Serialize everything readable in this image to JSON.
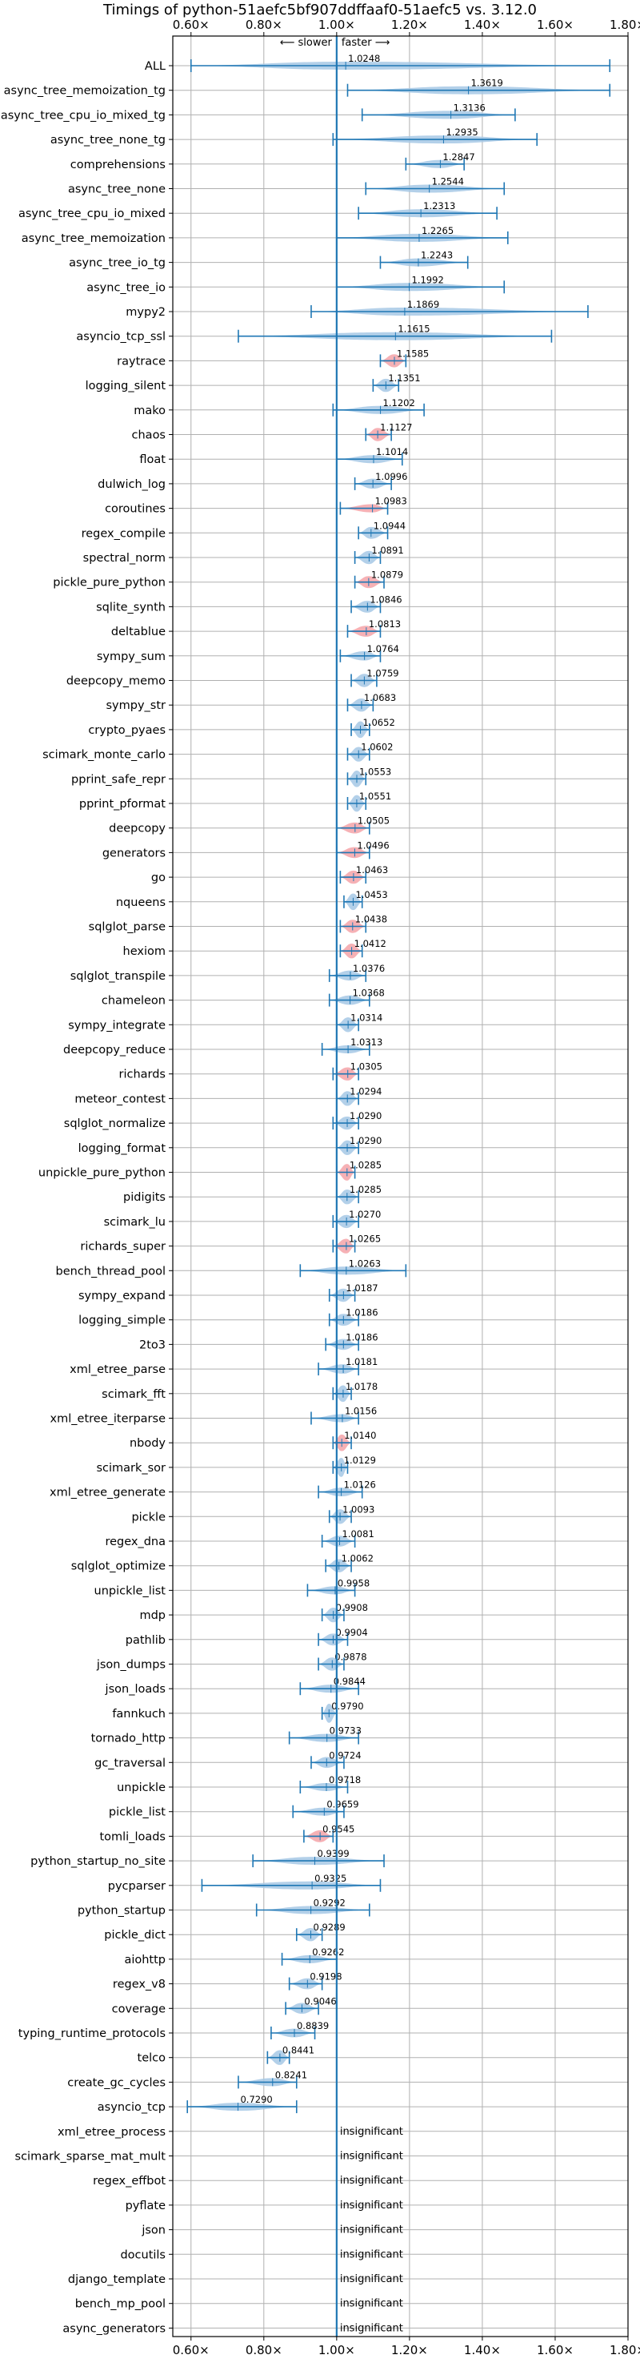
{
  "title": "Timings of python-51aefc5bf907ddffaaf0-51aefc5 vs. 3.12.0",
  "direction_labels": {
    "slower": "⟵ slower",
    "sep": "|",
    "faster": "faster ⟶"
  },
  "insignificant_label": "insignificant",
  "colors": {
    "violin": "#a6c8e5",
    "violin_slow": "#f4a3a8",
    "whisker": "#1f77b4",
    "axis": "#000000",
    "grid": "#b0b0b0"
  },
  "chart_data": {
    "type": "violin",
    "title": "Timings of python-51aefc5bf907ddffaaf0-51aefc5 vs. 3.12.0",
    "xlabel": "",
    "xlim": [
      0.55,
      1.8
    ],
    "xticks": [
      0.6,
      0.8,
      1.0,
      1.2,
      1.4,
      1.6,
      1.8
    ],
    "xtick_labels": [
      "0.60×",
      "0.80×",
      "1.00×",
      "1.20×",
      "1.40×",
      "1.60×",
      "1.80×"
    ],
    "reference_line": 1.0,
    "grid": true,
    "benchmarks": [
      {
        "name": "ALL",
        "mean": 1.0248,
        "low": 0.6,
        "high": 1.75,
        "slower": false
      },
      {
        "name": "async_tree_memoization_tg",
        "mean": 1.3619,
        "low": 1.03,
        "high": 1.75,
        "slower": false
      },
      {
        "name": "async_tree_cpu_io_mixed_tg",
        "mean": 1.3136,
        "low": 1.07,
        "high": 1.49,
        "slower": false
      },
      {
        "name": "async_tree_none_tg",
        "mean": 1.2935,
        "low": 0.99,
        "high": 1.55,
        "slower": false
      },
      {
        "name": "comprehensions",
        "mean": 1.2847,
        "low": 1.19,
        "high": 1.35,
        "slower": false
      },
      {
        "name": "async_tree_none",
        "mean": 1.2544,
        "low": 1.08,
        "high": 1.46,
        "slower": false
      },
      {
        "name": "async_tree_cpu_io_mixed",
        "mean": 1.2313,
        "low": 1.06,
        "high": 1.44,
        "slower": false
      },
      {
        "name": "async_tree_memoization",
        "mean": 1.2265,
        "low": 1.0,
        "high": 1.47,
        "slower": false
      },
      {
        "name": "async_tree_io_tg",
        "mean": 1.2243,
        "low": 1.12,
        "high": 1.36,
        "slower": false
      },
      {
        "name": "async_tree_io",
        "mean": 1.1992,
        "low": 1.0,
        "high": 1.46,
        "slower": false
      },
      {
        "name": "mypy2",
        "mean": 1.1869,
        "low": 0.93,
        "high": 1.69,
        "slower": false
      },
      {
        "name": "asyncio_tcp_ssl",
        "mean": 1.1615,
        "low": 0.73,
        "high": 1.59,
        "slower": false
      },
      {
        "name": "raytrace",
        "mean": 1.1585,
        "low": 1.12,
        "high": 1.19,
        "slower": true
      },
      {
        "name": "logging_silent",
        "mean": 1.1351,
        "low": 1.1,
        "high": 1.17,
        "slower": false
      },
      {
        "name": "mako",
        "mean": 1.1202,
        "low": 0.99,
        "high": 1.24,
        "slower": false
      },
      {
        "name": "chaos",
        "mean": 1.1127,
        "low": 1.08,
        "high": 1.15,
        "slower": true
      },
      {
        "name": "float",
        "mean": 1.1014,
        "low": 1.0,
        "high": 1.18,
        "slower": false
      },
      {
        "name": "dulwich_log",
        "mean": 1.0996,
        "low": 1.05,
        "high": 1.15,
        "slower": false
      },
      {
        "name": "coroutines",
        "mean": 1.0983,
        "low": 1.01,
        "high": 1.14,
        "slower": true
      },
      {
        "name": "regex_compile",
        "mean": 1.0944,
        "low": 1.06,
        "high": 1.14,
        "slower": false
      },
      {
        "name": "spectral_norm",
        "mean": 1.0891,
        "low": 1.05,
        "high": 1.12,
        "slower": false
      },
      {
        "name": "pickle_pure_python",
        "mean": 1.0879,
        "low": 1.05,
        "high": 1.13,
        "slower": true
      },
      {
        "name": "sqlite_synth",
        "mean": 1.0846,
        "low": 1.04,
        "high": 1.12,
        "slower": false
      },
      {
        "name": "deltablue",
        "mean": 1.0813,
        "low": 1.03,
        "high": 1.12,
        "slower": true
      },
      {
        "name": "sympy_sum",
        "mean": 1.0764,
        "low": 1.01,
        "high": 1.12,
        "slower": false
      },
      {
        "name": "deepcopy_memo",
        "mean": 1.0759,
        "low": 1.04,
        "high": 1.11,
        "slower": false
      },
      {
        "name": "sympy_str",
        "mean": 1.0683,
        "low": 1.03,
        "high": 1.1,
        "slower": false
      },
      {
        "name": "crypto_pyaes",
        "mean": 1.0652,
        "low": 1.04,
        "high": 1.09,
        "slower": false
      },
      {
        "name": "scimark_monte_carlo",
        "mean": 1.0602,
        "low": 1.03,
        "high": 1.09,
        "slower": false
      },
      {
        "name": "pprint_safe_repr",
        "mean": 1.0553,
        "low": 1.03,
        "high": 1.08,
        "slower": false
      },
      {
        "name": "pprint_pformat",
        "mean": 1.0551,
        "low": 1.03,
        "high": 1.08,
        "slower": false
      },
      {
        "name": "deepcopy",
        "mean": 1.0505,
        "low": 1.0,
        "high": 1.09,
        "slower": true
      },
      {
        "name": "generators",
        "mean": 1.0496,
        "low": 1.0,
        "high": 1.09,
        "slower": true
      },
      {
        "name": "go",
        "mean": 1.0463,
        "low": 1.01,
        "high": 1.08,
        "slower": true
      },
      {
        "name": "nqueens",
        "mean": 1.0453,
        "low": 1.02,
        "high": 1.07,
        "slower": false
      },
      {
        "name": "sqlglot_parse",
        "mean": 1.0438,
        "low": 1.01,
        "high": 1.08,
        "slower": true
      },
      {
        "name": "hexiom",
        "mean": 1.0412,
        "low": 1.01,
        "high": 1.07,
        "slower": true
      },
      {
        "name": "sqlglot_transpile",
        "mean": 1.0376,
        "low": 0.98,
        "high": 1.08,
        "slower": false
      },
      {
        "name": "chameleon",
        "mean": 1.0368,
        "low": 0.98,
        "high": 1.09,
        "slower": false
      },
      {
        "name": "sympy_integrate",
        "mean": 1.0314,
        "low": 1.0,
        "high": 1.06,
        "slower": false
      },
      {
        "name": "deepcopy_reduce",
        "mean": 1.0313,
        "low": 0.96,
        "high": 1.09,
        "slower": false
      },
      {
        "name": "richards",
        "mean": 1.0305,
        "low": 0.99,
        "high": 1.06,
        "slower": true
      },
      {
        "name": "meteor_contest",
        "mean": 1.0294,
        "low": 1.0,
        "high": 1.06,
        "slower": false
      },
      {
        "name": "sqlglot_normalize",
        "mean": 1.029,
        "low": 0.99,
        "high": 1.06,
        "slower": false
      },
      {
        "name": "logging_format",
        "mean": 1.029,
        "low": 1.0,
        "high": 1.06,
        "slower": false
      },
      {
        "name": "unpickle_pure_python",
        "mean": 1.0285,
        "low": 1.0,
        "high": 1.05,
        "slower": true
      },
      {
        "name": "pidigits",
        "mean": 1.0285,
        "low": 1.0,
        "high": 1.06,
        "slower": false
      },
      {
        "name": "scimark_lu",
        "mean": 1.027,
        "low": 0.99,
        "high": 1.06,
        "slower": false
      },
      {
        "name": "richards_super",
        "mean": 1.0265,
        "low": 0.99,
        "high": 1.05,
        "slower": true
      },
      {
        "name": "bench_thread_pool",
        "mean": 1.0263,
        "low": 0.9,
        "high": 1.19,
        "slower": false
      },
      {
        "name": "sympy_expand",
        "mean": 1.0187,
        "low": 0.98,
        "high": 1.05,
        "slower": false
      },
      {
        "name": "logging_simple",
        "mean": 1.0186,
        "low": 0.98,
        "high": 1.06,
        "slower": false
      },
      {
        "name": "2to3",
        "mean": 1.0186,
        "low": 0.97,
        "high": 1.06,
        "slower": false
      },
      {
        "name": "xml_etree_parse",
        "mean": 1.0181,
        "low": 0.95,
        "high": 1.06,
        "slower": false
      },
      {
        "name": "scimark_fft",
        "mean": 1.0178,
        "low": 0.99,
        "high": 1.04,
        "slower": false
      },
      {
        "name": "xml_etree_iterparse",
        "mean": 1.0156,
        "low": 0.93,
        "high": 1.06,
        "slower": false
      },
      {
        "name": "nbody",
        "mean": 1.014,
        "low": 0.99,
        "high": 1.04,
        "slower": true
      },
      {
        "name": "scimark_sor",
        "mean": 1.0129,
        "low": 0.99,
        "high": 1.03,
        "slower": false
      },
      {
        "name": "xml_etree_generate",
        "mean": 1.0126,
        "low": 0.95,
        "high": 1.07,
        "slower": false
      },
      {
        "name": "pickle",
        "mean": 1.0093,
        "low": 0.98,
        "high": 1.04,
        "slower": false
      },
      {
        "name": "regex_dna",
        "mean": 1.0081,
        "low": 0.96,
        "high": 1.05,
        "slower": false
      },
      {
        "name": "sqlglot_optimize",
        "mean": 1.0062,
        "low": 0.97,
        "high": 1.04,
        "slower": false
      },
      {
        "name": "unpickle_list",
        "mean": 0.9958,
        "low": 0.92,
        "high": 1.05,
        "slower": false
      },
      {
        "name": "mdp",
        "mean": 0.9908,
        "low": 0.96,
        "high": 1.02,
        "slower": false
      },
      {
        "name": "pathlib",
        "mean": 0.9904,
        "low": 0.95,
        "high": 1.03,
        "slower": false
      },
      {
        "name": "json_dumps",
        "mean": 0.9878,
        "low": 0.95,
        "high": 1.02,
        "slower": false
      },
      {
        "name": "json_loads",
        "mean": 0.9844,
        "low": 0.9,
        "high": 1.06,
        "slower": false
      },
      {
        "name": "fannkuch",
        "mean": 0.979,
        "low": 0.96,
        "high": 1.0,
        "slower": false
      },
      {
        "name": "tornado_http",
        "mean": 0.9733,
        "low": 0.87,
        "high": 1.06,
        "slower": false
      },
      {
        "name": "gc_traversal",
        "mean": 0.9724,
        "low": 0.93,
        "high": 1.02,
        "slower": false
      },
      {
        "name": "unpickle",
        "mean": 0.9718,
        "low": 0.9,
        "high": 1.03,
        "slower": false
      },
      {
        "name": "pickle_list",
        "mean": 0.9659,
        "low": 0.88,
        "high": 1.02,
        "slower": false
      },
      {
        "name": "tomli_loads",
        "mean": 0.9545,
        "low": 0.91,
        "high": 0.99,
        "slower": true
      },
      {
        "name": "python_startup_no_site",
        "mean": 0.9399,
        "low": 0.77,
        "high": 1.13,
        "slower": false
      },
      {
        "name": "pycparser",
        "mean": 0.9325,
        "low": 0.63,
        "high": 1.12,
        "slower": false
      },
      {
        "name": "python_startup",
        "mean": 0.9292,
        "low": 0.78,
        "high": 1.09,
        "slower": false
      },
      {
        "name": "pickle_dict",
        "mean": 0.9289,
        "low": 0.89,
        "high": 0.96,
        "slower": false
      },
      {
        "name": "aiohttp",
        "mean": 0.9262,
        "low": 0.85,
        "high": 1.0,
        "slower": false
      },
      {
        "name": "regex_v8",
        "mean": 0.9198,
        "low": 0.87,
        "high": 0.96,
        "slower": false
      },
      {
        "name": "coverage",
        "mean": 0.9046,
        "low": 0.86,
        "high": 0.95,
        "slower": false
      },
      {
        "name": "typing_runtime_protocols",
        "mean": 0.8839,
        "low": 0.82,
        "high": 0.94,
        "slower": false
      },
      {
        "name": "telco",
        "mean": 0.8441,
        "low": 0.81,
        "high": 0.87,
        "slower": false
      },
      {
        "name": "create_gc_cycles",
        "mean": 0.8241,
        "low": 0.73,
        "high": 0.89,
        "slower": false
      },
      {
        "name": "asyncio_tcp",
        "mean": 0.729,
        "low": 0.59,
        "high": 0.89,
        "slower": false
      },
      {
        "name": "xml_etree_process",
        "mean": null,
        "insignificant": true
      },
      {
        "name": "scimark_sparse_mat_mult",
        "mean": null,
        "insignificant": true
      },
      {
        "name": "regex_effbot",
        "mean": null,
        "insignificant": true
      },
      {
        "name": "pyflate",
        "mean": null,
        "insignificant": true
      },
      {
        "name": "json",
        "mean": null,
        "insignificant": true
      },
      {
        "name": "docutils",
        "mean": null,
        "insignificant": true
      },
      {
        "name": "django_template",
        "mean": null,
        "insignificant": true
      },
      {
        "name": "bench_mp_pool",
        "mean": null,
        "insignificant": true
      },
      {
        "name": "async_generators",
        "mean": null,
        "insignificant": true
      }
    ]
  }
}
